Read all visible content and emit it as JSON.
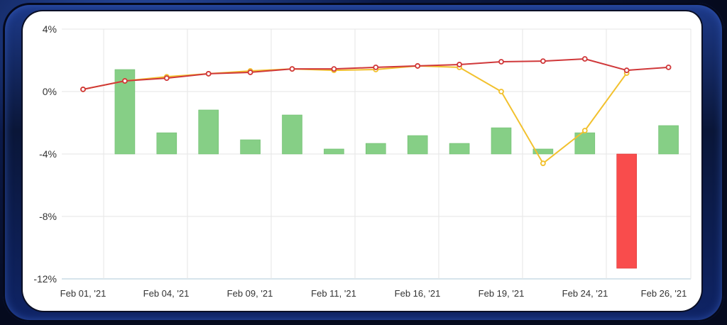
{
  "chart_data": {
    "type": "bar+line",
    "title": "",
    "xlabel": "",
    "ylabel": "",
    "ylim": [
      -12,
      4
    ],
    "yticks": [
      "4%",
      "0%",
      "-4%",
      "-8%",
      "-12%"
    ],
    "ytick_values": [
      4,
      0,
      -4,
      -8,
      -12
    ],
    "xtick_labels": [
      "Feb 01, '21",
      "Feb 04, '21",
      "Feb 09, '21",
      "Feb 11, '21",
      "Feb 16, '21",
      "Feb 19, '21",
      "Feb 24, '21",
      "Feb 26, '21"
    ],
    "grid": true,
    "legend": null,
    "bar_baseline": -4,
    "points": 15,
    "series": [
      {
        "name": "daily-change-bars",
        "type": "bar",
        "color_positive": "#86cf86",
        "color_negative": "#f94c4c",
        "values": [
          null,
          1.41,
          -2.64,
          -1.18,
          -3.09,
          -1.5,
          -3.68,
          -3.32,
          -2.82,
          -3.32,
          -2.32,
          -3.68,
          -2.64,
          -11.32,
          -2.18
        ]
      },
      {
        "name": "red-line",
        "type": "line",
        "color": "#d0383a",
        "values": [
          0.14,
          0.68,
          0.86,
          1.14,
          1.23,
          1.45,
          1.45,
          1.55,
          1.64,
          1.73,
          1.91,
          1.95,
          2.09,
          1.36,
          1.55
        ]
      },
      {
        "name": "yellow-line",
        "type": "line",
        "color": "#f2c12e",
        "values": [
          0.14,
          0.68,
          0.95,
          1.14,
          1.32,
          1.45,
          1.36,
          1.41,
          1.64,
          1.55,
          0.0,
          -4.6,
          -2.5,
          1.18,
          null
        ]
      }
    ]
  },
  "colors": {
    "frame": "#0b1a4a",
    "panel": "#ffffff",
    "grid": "#e6e6e6",
    "axis_bottom": "#c9dbe6"
  }
}
